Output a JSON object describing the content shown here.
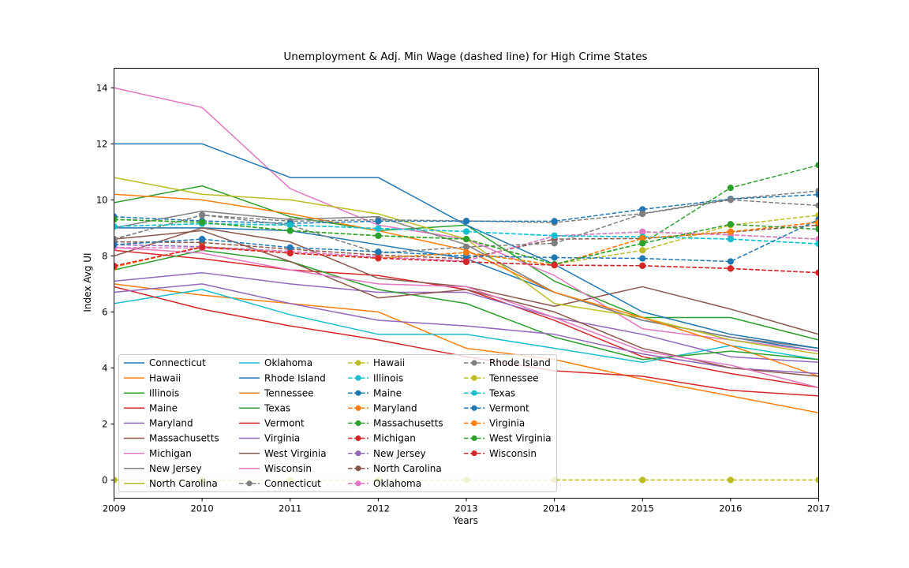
{
  "chart_data": {
    "type": "line",
    "title": "Unemployment & Adj. Min Wage (dashed line) for High Crime States",
    "xlabel": "Years",
    "ylabel": "Index Avg UI",
    "xlim": [
      2009,
      2017
    ],
    "ylim": [
      -0.65,
      14.7
    ],
    "x": [
      2009,
      2010,
      2011,
      2012,
      2013,
      2014,
      2015,
      2016,
      2017
    ],
    "x_ticks": [
      "2009",
      "2010",
      "2011",
      "2012",
      "2013",
      "2014",
      "2015",
      "2016",
      "2017"
    ],
    "y_ticks": [
      "0",
      "2",
      "4",
      "6",
      "8",
      "10",
      "12",
      "14"
    ],
    "grid": false,
    "legend_position": "lower-left",
    "series": [
      {
        "name": "Connecticut",
        "style": "solid",
        "color": "#1f77b4",
        "values": [
          9.0,
          9.0,
          8.9,
          8.4,
          7.9,
          6.7,
          5.7,
          5.1,
          4.6
        ]
      },
      {
        "name": "Hawaii",
        "style": "solid",
        "color": "#ff7f0e",
        "values": [
          7.0,
          6.6,
          6.3,
          6.0,
          4.7,
          4.3,
          3.6,
          3.0,
          2.4
        ]
      },
      {
        "name": "Illinois",
        "style": "solid",
        "color": "#2ca02c",
        "values": [
          9.9,
          10.5,
          9.4,
          8.9,
          9.1,
          7.1,
          5.8,
          5.8,
          5.0
        ]
      },
      {
        "name": "Maine",
        "style": "solid",
        "color": "#d62728",
        "values": [
          8.2,
          7.9,
          7.5,
          7.3,
          6.8,
          5.7,
          4.4,
          3.8,
          3.3
        ]
      },
      {
        "name": "Maryland",
        "style": "solid",
        "color": "#9467bd",
        "values": [
          7.1,
          7.4,
          7.0,
          6.7,
          6.7,
          5.8,
          5.2,
          4.4,
          4.2
        ]
      },
      {
        "name": "Massachusetts",
        "style": "solid",
        "color": "#8c564b",
        "values": [
          8.0,
          9.0,
          8.5,
          7.2,
          6.9,
          6.2,
          6.9,
          6.1,
          5.2
        ]
      },
      {
        "name": "Michigan",
        "style": "solid",
        "color": "#e377c2",
        "values": [
          14.0,
          13.3,
          10.4,
          9.1,
          8.6,
          7.3,
          5.4,
          5.0,
          4.6
        ]
      },
      {
        "name": "New Jersey",
        "style": "solid",
        "color": "#7f7f7f",
        "values": [
          9.0,
          9.6,
          9.3,
          9.4,
          8.4,
          6.7,
          5.7,
          5.1,
          4.7
        ]
      },
      {
        "name": "North Carolina",
        "style": "solid",
        "color": "#bcbd22",
        "values": [
          10.8,
          10.2,
          10.0,
          9.5,
          8.6,
          6.3,
          5.8,
          5.0,
          4.5
        ]
      },
      {
        "name": "Oklahoma",
        "style": "solid",
        "color": "#17becf",
        "values": [
          6.3,
          6.8,
          5.9,
          5.2,
          5.2,
          4.7,
          4.2,
          4.8,
          4.3
        ]
      },
      {
        "name": "Rhode Island",
        "style": "solid",
        "color": "#1f77b4",
        "values": [
          12.0,
          12.0,
          10.8,
          10.8,
          9.1,
          7.7,
          6.0,
          5.2,
          4.7
        ]
      },
      {
        "name": "Tennessee",
        "style": "solid",
        "color": "#ff7f0e",
        "values": [
          10.2,
          10.0,
          9.5,
          8.9,
          8.2,
          6.7,
          5.8,
          4.8,
          3.7
        ]
      },
      {
        "name": "Texas",
        "style": "solid",
        "color": "#2ca02c",
        "values": [
          7.5,
          8.2,
          7.8,
          6.8,
          6.3,
          5.1,
          4.3,
          4.6,
          4.3
        ]
      },
      {
        "name": "Vermont",
        "style": "solid",
        "color": "#d62728",
        "values": [
          6.9,
          6.1,
          5.5,
          5.0,
          4.4,
          3.9,
          3.7,
          3.2,
          3.0
        ]
      },
      {
        "name": "Virginia",
        "style": "solid",
        "color": "#9467bd",
        "values": [
          6.7,
          7.0,
          6.3,
          5.7,
          5.5,
          5.2,
          4.5,
          4.0,
          3.8
        ]
      },
      {
        "name": "West Virginia",
        "style": "solid",
        "color": "#8c564b",
        "values": [
          8.6,
          8.9,
          7.8,
          6.5,
          6.8,
          6.0,
          4.7,
          4.0,
          3.7
        ]
      },
      {
        "name": "Wisconsin",
        "style": "solid",
        "color": "#e377c2",
        "values": [
          8.3,
          8.1,
          7.5,
          7.0,
          6.9,
          5.8,
          4.6,
          4.1,
          3.3
        ]
      },
      {
        "name": "Connecticut",
        "style": "dashed",
        "color": "#7f7f7f",
        "values": [
          8.6,
          9.46,
          9.24,
          9.29,
          9.25,
          9.19,
          9.51,
          10.03,
          10.32
        ]
      },
      {
        "name": "Hawaii",
        "style": "dashed",
        "color": "#bcbd22",
        "values": [
          0,
          0,
          0,
          0,
          0,
          0,
          0,
          0,
          0
        ]
      },
      {
        "name": "Illinois",
        "style": "dashed",
        "color": "#17becf",
        "values": [
          9.05,
          9.15,
          9.1,
          8.98,
          8.87,
          8.72,
          8.68,
          8.6,
          8.43
        ]
      },
      {
        "name": "Maine",
        "style": "dashed",
        "color": "#1f77b4",
        "values": [
          9.4,
          9.25,
          9.16,
          9.24,
          9.24,
          9.24,
          9.66,
          10.03,
          10.19
        ]
      },
      {
        "name": "Maryland",
        "style": "dashed",
        "color": "#ff7f0e",
        "values": [
          7.6,
          8.33,
          8.1,
          7.92,
          8.12,
          7.67,
          8.63,
          8.86,
          9.2
        ]
      },
      {
        "name": "Massachusetts",
        "style": "dashed",
        "color": "#2ca02c",
        "values": [
          9.3,
          9.2,
          8.9,
          8.72,
          8.6,
          7.7,
          8.45,
          10.43,
          11.24
        ]
      },
      {
        "name": "Michigan",
        "style": "dashed",
        "color": "#d62728",
        "values": [
          7.64,
          8.31,
          8.1,
          7.92,
          7.79,
          7.67,
          7.65,
          7.55,
          7.4
        ]
      },
      {
        "name": "New Jersey",
        "style": "dashed",
        "color": "#9467bd",
        "values": [
          8.4,
          8.33,
          8.16,
          7.96,
          7.82,
          8.71,
          8.86,
          8.75,
          8.6
        ]
      },
      {
        "name": "North Carolina",
        "style": "dashed",
        "color": "#8c564b",
        "values": [
          8.5,
          8.48,
          8.24,
          8.03,
          7.9,
          8.6,
          8.62,
          8.85,
          9.1
        ]
      },
      {
        "name": "Oklahoma",
        "style": "dashed",
        "color": "#e377c2",
        "values": [
          8.3,
          8.28,
          8.16,
          7.96,
          7.82,
          8.71,
          8.86,
          8.75,
          8.6
        ]
      },
      {
        "name": "Rhode Island",
        "style": "dashed",
        "color": "#7f7f7f",
        "values": [
          8.6,
          9.46,
          9.1,
          8.1,
          8.32,
          8.45,
          9.5,
          10.0,
          9.8
        ]
      },
      {
        "name": "Tennessee",
        "style": "dashed",
        "color": "#bcbd22",
        "values": [
          9.3,
          9.2,
          8.9,
          8.72,
          8.6,
          7.7,
          8.2,
          9.1,
          9.45
        ]
      },
      {
        "name": "Texas",
        "style": "dashed",
        "color": "#17becf",
        "values": [
          9.05,
          9.15,
          9.1,
          8.98,
          8.87,
          8.72,
          8.68,
          8.6,
          8.43
        ]
      },
      {
        "name": "Vermont",
        "style": "dashed",
        "color": "#1f77b4",
        "values": [
          8.4,
          8.6,
          8.3,
          8.15,
          8.0,
          7.94,
          7.91,
          7.8,
          9.3
        ]
      },
      {
        "name": "Virginia",
        "style": "dashed",
        "color": "#ff7f0e",
        "values": [
          7.6,
          8.33,
          8.1,
          7.92,
          8.12,
          7.67,
          8.63,
          8.86,
          9.2
        ]
      },
      {
        "name": "West Virginia",
        "style": "dashed",
        "color": "#2ca02c",
        "values": [
          9.3,
          9.2,
          8.9,
          8.72,
          8.6,
          7.7,
          8.45,
          9.13,
          8.95
        ]
      },
      {
        "name": "Wisconsin",
        "style": "dashed",
        "color": "#d62728",
        "values": [
          7.64,
          8.31,
          8.1,
          7.92,
          7.79,
          7.67,
          7.65,
          7.55,
          7.4
        ]
      }
    ]
  }
}
